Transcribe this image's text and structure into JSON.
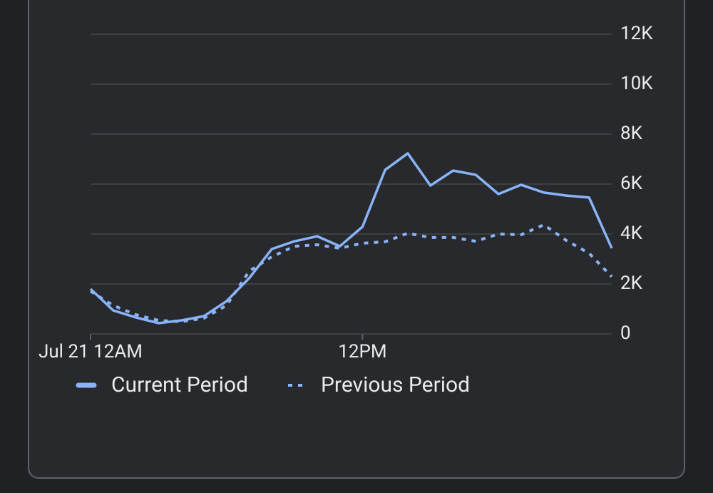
{
  "chart_data": {
    "type": "line",
    "categories": [
      "Jul 21 12AM",
      null,
      null,
      null,
      null,
      null,
      null,
      null,
      null,
      null,
      null,
      null,
      "12PM",
      null,
      null,
      null,
      null,
      null,
      null,
      null,
      null,
      null,
      null,
      null
    ],
    "series": [
      {
        "name": "Current Period",
        "color": "#8ab4f8",
        "dashed": false,
        "values": [
          1800,
          940,
          660,
          430,
          540,
          710,
          1310,
          2230,
          3400,
          3710,
          3910,
          3510,
          4290,
          6570,
          7230,
          5940,
          6540,
          6370,
          5600,
          5970,
          5660,
          5540,
          5460,
          3430
        ]
      },
      {
        "name": "Previous Period",
        "color": "#8ab4f8",
        "dashed": true,
        "values": [
          1710,
          1140,
          770,
          540,
          490,
          630,
          1140,
          2510,
          3090,
          3510,
          3570,
          3430,
          3630,
          3690,
          4030,
          3860,
          3860,
          3710,
          4000,
          3970,
          4370,
          3740,
          3230,
          2290
        ]
      }
    ],
    "ylim": [
      0,
      12000
    ],
    "yticks": [
      0,
      {
        "value": 2000,
        "label": "2K"
      },
      {
        "value": 4000,
        "label": "4K"
      },
      {
        "value": 6000,
        "label": "6K"
      },
      {
        "value": 8000,
        "label": "8K"
      },
      {
        "value": 10000,
        "label": "10K"
      },
      {
        "value": 12000,
        "label": "12K"
      }
    ],
    "grid": true,
    "legend": "bottom-left"
  }
}
